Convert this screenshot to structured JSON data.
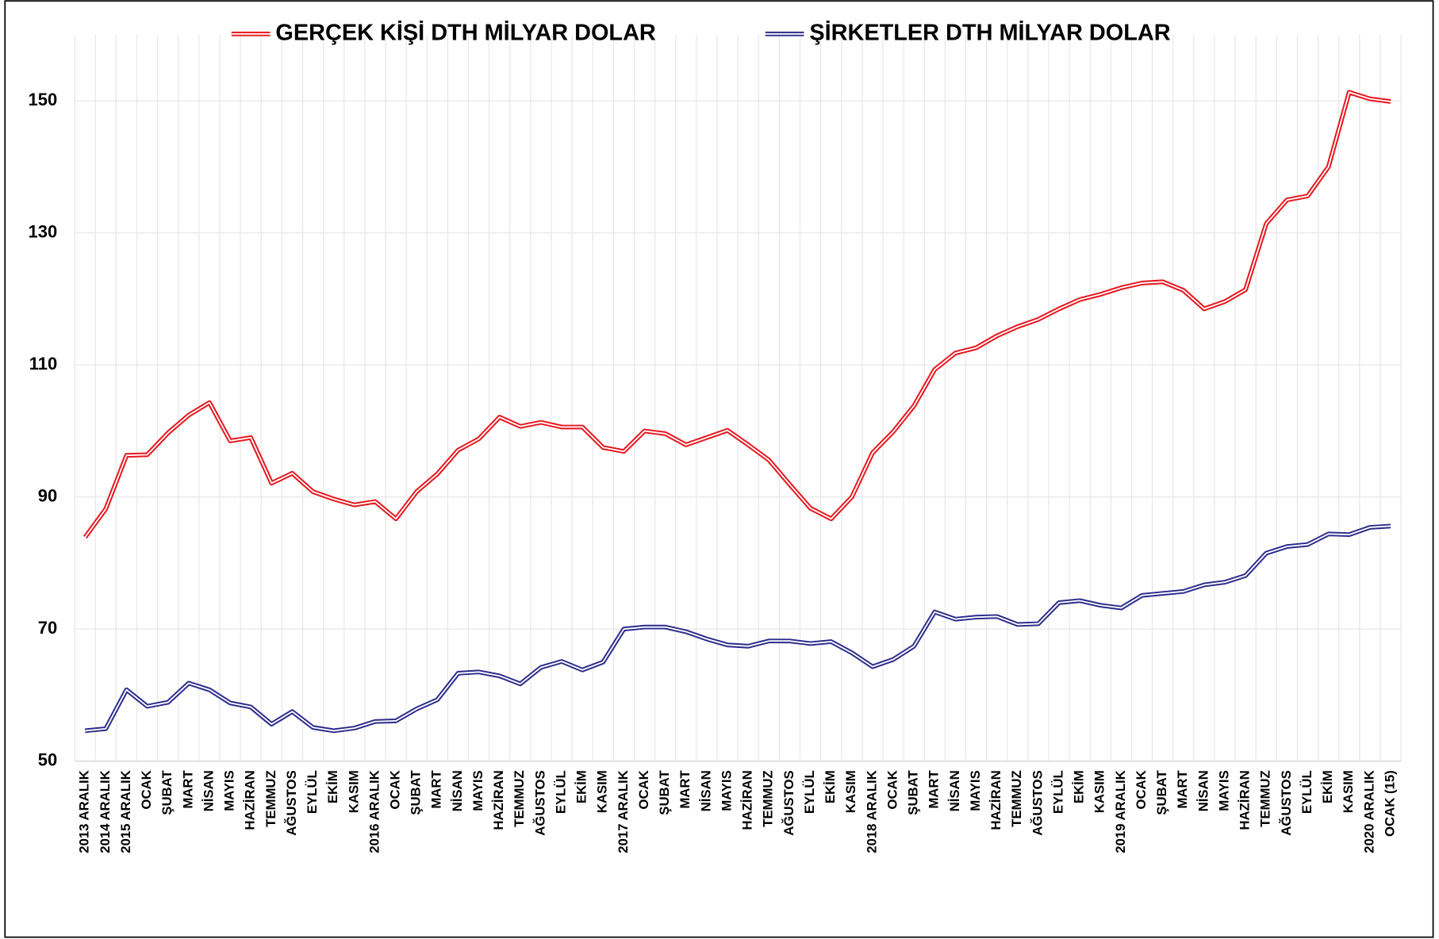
{
  "chart_data": {
    "type": "line",
    "categories": [
      "2013 ARALIK",
      "2014 ARALIK",
      "2015 ARALIK",
      "OCAK",
      "ŞUBAT",
      "MART",
      "NİSAN",
      "MAYIS",
      "HAZİRAN",
      "TEMMUZ",
      "AĞUSTOS",
      "EYLÜL",
      "EKİM",
      "KASIM",
      "2016 ARALIK",
      "OCAK",
      "ŞUBAT",
      "MART",
      "NİSAN",
      "MAYIS",
      "HAZİRAN",
      "TEMMUZ",
      "AĞUSTOS",
      "EYLÜL",
      "EKİM",
      "KASIM",
      "2017 ARALIK",
      "OCAK",
      "ŞUBAT",
      "MART",
      "NİSAN",
      "MAYIS",
      "HAZİRAN",
      "TEMMUZ",
      "AĞUSTOS",
      "EYLÜL",
      "EKİM",
      "KASIM",
      "2018 ARALIK",
      "OCAK",
      "ŞUBAT",
      "MART",
      "NİSAN",
      "MAYIS",
      "HAZİRAN",
      "TEMMUZ",
      "AĞUSTOS",
      "EYLÜL",
      "EKİM",
      "KASIM",
      "2019 ARALIK",
      "OCAK",
      "ŞUBAT",
      "MART",
      "NİSAN",
      "MAYIS",
      "HAZİRAN",
      "TEMMUZ",
      "AĞUSTOS",
      "EYLÜL",
      "EKİM",
      "KASIM",
      "2020 ARALIK",
      "OCAK (15)"
    ],
    "series": [
      {
        "name": "GERÇEK KİŞİ DTH MİLYAR DOLAR",
        "color": "#e8141c",
        "values": [
          83.9,
          88.2,
          96.3,
          96.4,
          99.7,
          102.4,
          104.3,
          98.5,
          99.0,
          92.1,
          93.6,
          90.8,
          89.7,
          88.8,
          89.3,
          86.7,
          90.8,
          93.5,
          97.1,
          98.8,
          102.1,
          100.7,
          101.3,
          100.6,
          100.6,
          97.5,
          96.9,
          100.0,
          99.6,
          97.9,
          99.0,
          100.1,
          97.9,
          95.6,
          91.9,
          88.3,
          86.7,
          90.0,
          96.7,
          99.9,
          103.8,
          109.3,
          111.8,
          112.6,
          114.4,
          115.8,
          116.9,
          118.5,
          119.9,
          120.7,
          121.7,
          122.4,
          122.6,
          121.3,
          118.5,
          119.6,
          121.4,
          131.4,
          135.0,
          135.6,
          140.0,
          151.3,
          150.3,
          149.9
        ]
      },
      {
        "name": "ŞİRKETLER DTH MİLYAR DOLAR",
        "color": "#2b2b8c",
        "values": [
          54.6,
          54.9,
          60.8,
          58.3,
          58.9,
          61.8,
          60.8,
          58.8,
          58.2,
          55.6,
          57.5,
          55.1,
          54.6,
          55.0,
          56.0,
          56.1,
          57.9,
          59.3,
          63.3,
          63.5,
          62.9,
          61.7,
          64.2,
          65.1,
          63.8,
          65.0,
          70.0,
          70.3,
          70.3,
          69.6,
          68.5,
          67.6,
          67.4,
          68.2,
          68.2,
          67.8,
          68.1,
          66.4,
          64.3,
          65.4,
          67.4,
          72.6,
          71.5,
          71.8,
          71.9,
          70.7,
          70.8,
          74.0,
          74.3,
          73.6,
          73.2,
          75.1,
          75.4,
          75.7,
          76.7,
          77.1,
          78.1,
          81.5,
          82.5,
          82.8,
          84.4,
          84.3,
          85.4,
          85.6
        ]
      }
    ],
    "ylim": [
      50,
      160
    ],
    "yticks": [
      50,
      70,
      90,
      110,
      130,
      150
    ],
    "grid": true,
    "legend": "top"
  }
}
